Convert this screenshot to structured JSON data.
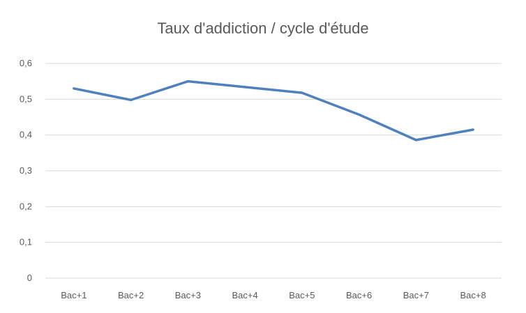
{
  "chart_data": {
    "type": "line",
    "title": "Taux d'addiction  / cycle d'étude",
    "xlabel": "",
    "ylabel": "",
    "categories": [
      "Bac+1",
      "Bac+2",
      "Bac+3",
      "Bac+4",
      "Bac+5",
      "Bac+6",
      "Bac+7",
      "Bac+8"
    ],
    "series": [
      {
        "values": [
          0.53,
          0.498,
          0.55,
          0.534,
          0.518,
          0.457,
          0.386,
          0.415
        ]
      }
    ],
    "ylim": [
      0,
      0.6
    ],
    "yticks": [
      0,
      0.1,
      0.2,
      0.3,
      0.4,
      0.5,
      0.6
    ],
    "ytick_labels": [
      "0",
      "0,1",
      "0,2",
      "0,3",
      "0,4",
      "0,5",
      "0,6"
    ],
    "grid": true,
    "legend": "none",
    "line_color": "#4f81bd"
  }
}
